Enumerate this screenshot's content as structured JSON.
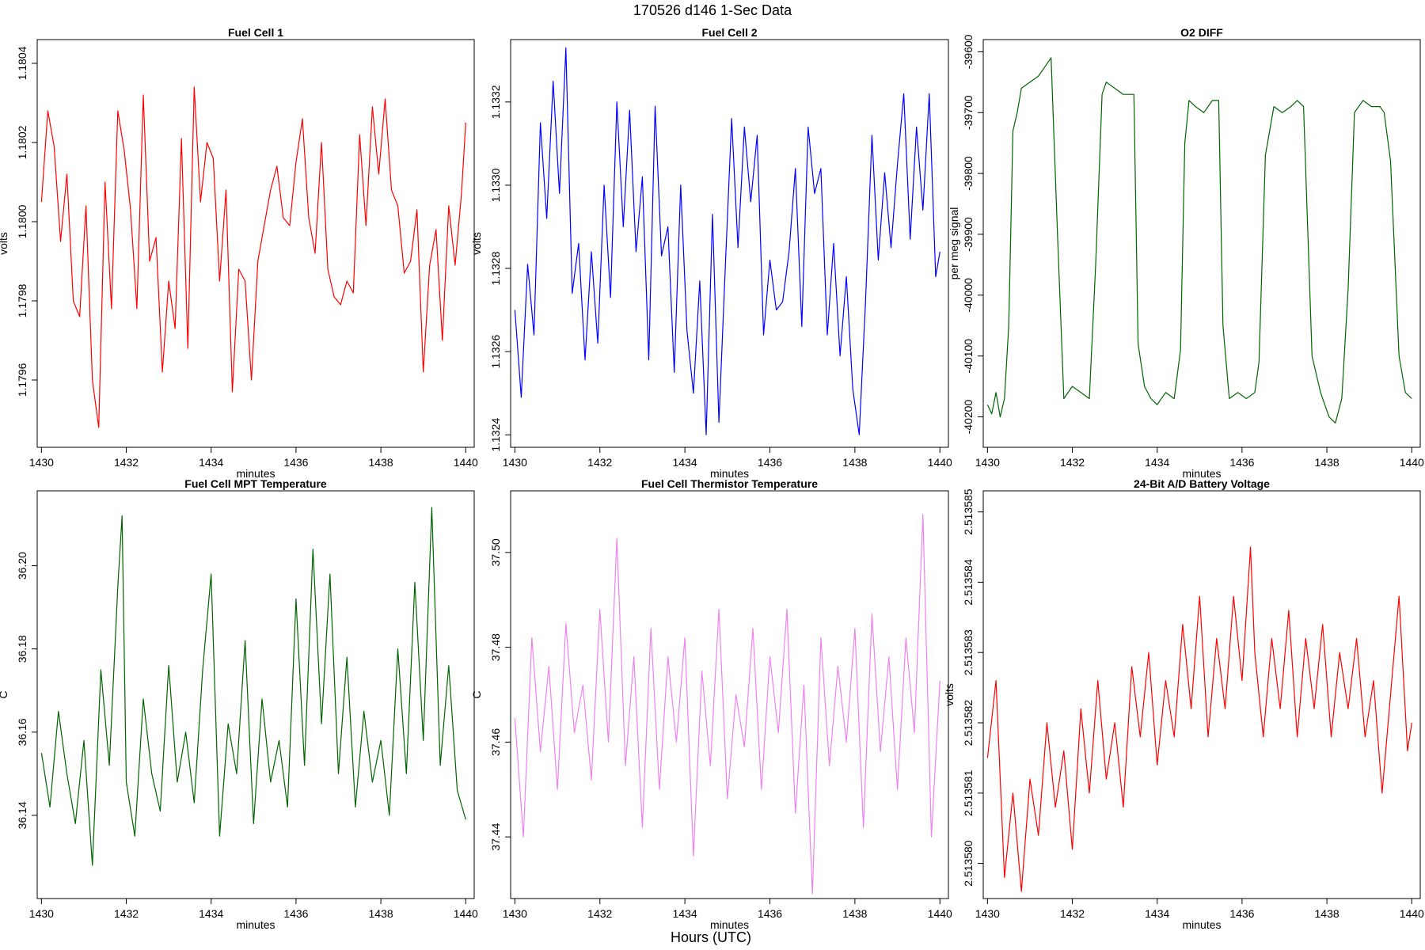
{
  "figure": {
    "title": "170526   d146   1-Sec Data",
    "footer": "Hours (UTC)"
  },
  "chart_data": [
    {
      "type": "line",
      "title": "Fuel Cell 1",
      "xlabel": "minutes",
      "ylabel": "volts",
      "color": "#ff0000",
      "xlim": [
        1429.9,
        1440.2
      ],
      "ylim": [
        1.17943,
        1.18046
      ],
      "xticks": [
        "1430",
        "1432",
        "1434",
        "1436",
        "1438",
        "1440"
      ],
      "yticks": [
        "1.1796",
        "1.1798",
        "1.1800",
        "1.1802",
        "1.1804"
      ],
      "series": [
        {
          "x": [
            1430.0,
            1430.15,
            1430.3,
            1430.45,
            1430.6,
            1430.75,
            1430.9,
            1431.05,
            1431.2,
            1431.35,
            1431.5,
            1431.65,
            1431.8,
            1431.95,
            1432.1,
            1432.25,
            1432.4,
            1432.55,
            1432.7,
            1432.85,
            1433.0,
            1433.15,
            1433.3,
            1433.45,
            1433.6,
            1433.75,
            1433.9,
            1434.05,
            1434.2,
            1434.35,
            1434.5,
            1434.65,
            1434.8,
            1434.95,
            1435.1,
            1435.25,
            1435.4,
            1435.55,
            1435.7,
            1435.85,
            1436.0,
            1436.15,
            1436.3,
            1436.45,
            1436.6,
            1436.75,
            1436.9,
            1437.05,
            1437.2,
            1437.35,
            1437.5,
            1437.65,
            1437.8,
            1437.95,
            1438.1,
            1438.25,
            1438.4,
            1438.55,
            1438.7,
            1438.85,
            1439.0,
            1439.15,
            1439.3,
            1439.45,
            1439.6,
            1439.75,
            1439.9,
            1440.0
          ],
          "y": [
            1.18005,
            1.18028,
            1.18019,
            1.17995,
            1.18012,
            1.1798,
            1.17976,
            1.18004,
            1.1796,
            1.17948,
            1.1801,
            1.17978,
            1.18028,
            1.18018,
            1.18003,
            1.17978,
            1.18032,
            1.1799,
            1.17996,
            1.17962,
            1.17985,
            1.17973,
            1.18021,
            1.17968,
            1.18034,
            1.18005,
            1.1802,
            1.18016,
            1.17985,
            1.18008,
            1.17957,
            1.17988,
            1.17985,
            1.1796,
            1.1799,
            1.17999,
            1.18008,
            1.18014,
            1.18001,
            1.17999,
            1.18015,
            1.18026,
            1.18001,
            1.17992,
            1.1802,
            1.17988,
            1.17981,
            1.17979,
            1.17985,
            1.17982,
            1.18022,
            1.17999,
            1.18029,
            1.18012,
            1.18031,
            1.18008,
            1.18004,
            1.17987,
            1.1799,
            1.18003,
            1.17962,
            1.17989,
            1.17998,
            1.1797,
            1.18004,
            1.17989,
            1.18007,
            1.18025
          ]
        }
      ]
    },
    {
      "type": "line",
      "title": "Fuel Cell 2",
      "xlabel": "minutes",
      "ylabel": "volts",
      "color": "#0000ff",
      "xlim": [
        1429.9,
        1440.2
      ],
      "ylim": [
        1.13237,
        1.13335
      ],
      "xticks": [
        "1430",
        "1432",
        "1434",
        "1436",
        "1438",
        "1440"
      ],
      "yticks": [
        "1.1324",
        "1.1326",
        "1.1328",
        "1.1330",
        "1.1332"
      ],
      "series": [
        {
          "x": [
            1430.0,
            1430.15,
            1430.3,
            1430.45,
            1430.6,
            1430.75,
            1430.9,
            1431.05,
            1431.2,
            1431.35,
            1431.5,
            1431.65,
            1431.8,
            1431.95,
            1432.1,
            1432.25,
            1432.4,
            1432.55,
            1432.7,
            1432.85,
            1433.0,
            1433.15,
            1433.3,
            1433.45,
            1433.6,
            1433.75,
            1433.9,
            1434.05,
            1434.2,
            1434.35,
            1434.5,
            1434.65,
            1434.8,
            1434.95,
            1435.1,
            1435.25,
            1435.4,
            1435.55,
            1435.7,
            1435.85,
            1436.0,
            1436.15,
            1436.3,
            1436.45,
            1436.6,
            1436.75,
            1436.9,
            1437.05,
            1437.2,
            1437.35,
            1437.5,
            1437.65,
            1437.8,
            1437.95,
            1438.1,
            1438.25,
            1438.4,
            1438.55,
            1438.7,
            1438.85,
            1439.0,
            1439.15,
            1439.3,
            1439.45,
            1439.6,
            1439.75,
            1439.9,
            1440.0
          ],
          "y": [
            1.1327,
            1.13249,
            1.13281,
            1.13264,
            1.13315,
            1.13292,
            1.13325,
            1.13298,
            1.13333,
            1.13274,
            1.13286,
            1.13258,
            1.13284,
            1.13262,
            1.133,
            1.13273,
            1.1332,
            1.1329,
            1.13318,
            1.13284,
            1.13302,
            1.13258,
            1.13319,
            1.13283,
            1.1329,
            1.13255,
            1.133,
            1.13265,
            1.1325,
            1.13277,
            1.1324,
            1.13293,
            1.13243,
            1.1328,
            1.13316,
            1.13285,
            1.13314,
            1.13296,
            1.13312,
            1.13264,
            1.13282,
            1.1327,
            1.13272,
            1.13284,
            1.13304,
            1.13266,
            1.13314,
            1.13298,
            1.13304,
            1.13264,
            1.13286,
            1.13259,
            1.13278,
            1.13251,
            1.1324,
            1.13272,
            1.13312,
            1.13282,
            1.13303,
            1.13285,
            1.13305,
            1.13322,
            1.13287,
            1.13314,
            1.13294,
            1.13322,
            1.13278,
            1.13284
          ]
        }
      ]
    },
    {
      "type": "line",
      "title": "O2 DIFF",
      "xlabel": "minutes",
      "ylabel": "per meg signal",
      "color": "#006400",
      "xlim": [
        1429.9,
        1440.2
      ],
      "ylim": [
        -40250,
        -39580
      ],
      "xticks": [
        "1430",
        "1432",
        "1434",
        "1436",
        "1438",
        "1440"
      ],
      "yticks": [
        "-39600",
        "-39700",
        "-39800",
        "-39900",
        "-40000",
        "-40100",
        "-40200"
      ],
      "series": [
        {
          "x": [
            1430.0,
            1430.1,
            1430.2,
            1430.3,
            1430.4,
            1430.5,
            1430.6,
            1430.7,
            1430.8,
            1431.0,
            1431.2,
            1431.4,
            1431.5,
            1431.65,
            1431.8,
            1432.0,
            1432.2,
            1432.4,
            1432.55,
            1432.7,
            1432.8,
            1433.0,
            1433.2,
            1433.45,
            1433.55,
            1433.7,
            1433.85,
            1434.0,
            1434.2,
            1434.4,
            1434.55,
            1434.65,
            1434.75,
            1434.9,
            1435.1,
            1435.3,
            1435.45,
            1435.55,
            1435.7,
            1435.9,
            1436.1,
            1436.3,
            1436.4,
            1436.55,
            1436.75,
            1436.95,
            1437.15,
            1437.3,
            1437.45,
            1437.65,
            1437.85,
            1438.05,
            1438.2,
            1438.35,
            1438.5,
            1438.65,
            1438.85,
            1439.05,
            1439.25,
            1439.35,
            1439.5,
            1439.7,
            1439.85,
            1440.0
          ],
          "y": [
            -40180,
            -40195,
            -40160,
            -40200,
            -40170,
            -40050,
            -39730,
            -39700,
            -39660,
            -39650,
            -39640,
            -39620,
            -39610,
            -39900,
            -40170,
            -40150,
            -40160,
            -40170,
            -39950,
            -39670,
            -39650,
            -39660,
            -39670,
            -39670,
            -40080,
            -40150,
            -40170,
            -40180,
            -40160,
            -40170,
            -40090,
            -39750,
            -39680,
            -39690,
            -39700,
            -39680,
            -39680,
            -40050,
            -40170,
            -40160,
            -40170,
            -40160,
            -40110,
            -39770,
            -39690,
            -39700,
            -39690,
            -39680,
            -39690,
            -40100,
            -40160,
            -40200,
            -40210,
            -40170,
            -39990,
            -39700,
            -39680,
            -39690,
            -39690,
            -39700,
            -39780,
            -40100,
            -40160,
            -40170
          ]
        }
      ]
    },
    {
      "type": "line",
      "title": "Fuel Cell MPT Temperature",
      "xlabel": "minutes",
      "ylabel": "C",
      "color": "#006400",
      "xlim": [
        1429.9,
        1440.2
      ],
      "ylim": [
        36.12,
        36.218
      ],
      "xticks": [
        "1430",
        "1432",
        "1434",
        "1436",
        "1438",
        "1440"
      ],
      "yticks": [
        "36.14",
        "36.16",
        "36.18",
        "36.20"
      ],
      "series": [
        {
          "x": [
            1430.0,
            1430.2,
            1430.4,
            1430.6,
            1430.8,
            1431.0,
            1431.2,
            1431.4,
            1431.6,
            1431.8,
            1431.9,
            1432.0,
            1432.2,
            1432.4,
            1432.6,
            1432.8,
            1433.0,
            1433.2,
            1433.4,
            1433.6,
            1433.8,
            1434.0,
            1434.2,
            1434.4,
            1434.6,
            1434.8,
            1435.0,
            1435.2,
            1435.4,
            1435.6,
            1435.8,
            1436.0,
            1436.2,
            1436.4,
            1436.6,
            1436.8,
            1437.0,
            1437.2,
            1437.4,
            1437.6,
            1437.8,
            1438.0,
            1438.2,
            1438.4,
            1438.6,
            1438.8,
            1439.0,
            1439.2,
            1439.4,
            1439.6,
            1439.8,
            1440.0
          ],
          "y": [
            36.155,
            36.142,
            36.165,
            36.15,
            36.138,
            36.158,
            36.128,
            36.175,
            36.152,
            36.195,
            36.212,
            36.148,
            36.135,
            36.168,
            36.15,
            36.141,
            36.176,
            36.148,
            36.16,
            36.143,
            36.175,
            36.198,
            36.135,
            36.162,
            36.15,
            36.182,
            36.138,
            36.168,
            36.148,
            36.158,
            36.142,
            36.192,
            36.152,
            36.204,
            36.162,
            36.198,
            36.15,
            36.178,
            36.142,
            36.165,
            36.148,
            36.158,
            36.14,
            36.18,
            36.15,
            36.196,
            36.158,
            36.214,
            36.152,
            36.176,
            36.146,
            36.139
          ]
        }
      ]
    },
    {
      "type": "line",
      "title": "Fuel Cell Thermistor Temperature",
      "xlabel": "minutes",
      "ylabel": "C",
      "color": "#ee82ee",
      "xlim": [
        1429.9,
        1440.2
      ],
      "ylim": [
        37.427,
        37.513
      ],
      "xticks": [
        "1430",
        "1432",
        "1434",
        "1436",
        "1438",
        "1440"
      ],
      "yticks": [
        "37.44",
        "37.46",
        "37.48",
        "37.50"
      ],
      "series": [
        {
          "x": [
            1430.0,
            1430.2,
            1430.4,
            1430.6,
            1430.8,
            1431.0,
            1431.2,
            1431.4,
            1431.6,
            1431.8,
            1432.0,
            1432.2,
            1432.4,
            1432.6,
            1432.8,
            1433.0,
            1433.2,
            1433.4,
            1433.6,
            1433.8,
            1434.0,
            1434.2,
            1434.4,
            1434.6,
            1434.8,
            1435.0,
            1435.2,
            1435.4,
            1435.6,
            1435.8,
            1436.0,
            1436.2,
            1436.4,
            1436.6,
            1436.8,
            1437.0,
            1437.2,
            1437.4,
            1437.6,
            1437.8,
            1438.0,
            1438.2,
            1438.4,
            1438.6,
            1438.8,
            1439.0,
            1439.2,
            1439.4,
            1439.6,
            1439.8,
            1440.0
          ],
          "y": [
            37.465,
            37.44,
            37.482,
            37.458,
            37.476,
            37.45,
            37.485,
            37.462,
            37.472,
            37.452,
            37.488,
            37.46,
            37.503,
            37.455,
            37.478,
            37.442,
            37.484,
            37.45,
            37.478,
            37.46,
            37.482,
            37.436,
            37.475,
            37.455,
            37.488,
            37.448,
            37.47,
            37.459,
            37.484,
            37.45,
            37.478,
            37.462,
            37.488,
            37.445,
            37.472,
            37.428,
            37.482,
            37.455,
            37.476,
            37.46,
            37.484,
            37.442,
            37.487,
            37.458,
            37.478,
            37.45,
            37.482,
            37.462,
            37.508,
            37.44,
            37.473
          ]
        }
      ]
    },
    {
      "type": "line",
      "title": "24-Bit A/D Battery Voltage",
      "xlabel": "minutes",
      "ylabel": "volts",
      "color": "#ff0000",
      "xlim": [
        1429.9,
        1440.2
      ],
      "ylim": [
        2.5135795,
        2.5135853
      ],
      "xticks": [
        "1430",
        "1432",
        "1434",
        "1436",
        "1438",
        "1440"
      ],
      "yticks": [
        "2.513580",
        "2.513581",
        "2.513582",
        "2.513583",
        "2.513584",
        "2.513585"
      ],
      "series": [
        {
          "x": [
            1430.0,
            1430.2,
            1430.4,
            1430.6,
            1430.8,
            1431.0,
            1431.2,
            1431.4,
            1431.6,
            1431.8,
            1432.0,
            1432.2,
            1432.4,
            1432.6,
            1432.8,
            1433.0,
            1433.2,
            1433.4,
            1433.6,
            1433.8,
            1434.0,
            1434.2,
            1434.4,
            1434.6,
            1434.8,
            1435.0,
            1435.2,
            1435.4,
            1435.6,
            1435.8,
            1436.0,
            1436.2,
            1436.3,
            1436.5,
            1436.7,
            1436.9,
            1437.1,
            1437.3,
            1437.5,
            1437.7,
            1437.9,
            1438.1,
            1438.3,
            1438.5,
            1438.7,
            1438.9,
            1439.1,
            1439.3,
            1439.5,
            1439.7,
            1439.9,
            1440.0
          ],
          "y": [
            2.5135815,
            2.5135826,
            2.5135798,
            2.513581,
            2.5135796,
            2.5135812,
            2.5135804,
            2.513582,
            2.5135808,
            2.5135816,
            2.5135802,
            2.5135822,
            2.513581,
            2.5135826,
            2.5135812,
            2.513582,
            2.5135808,
            2.5135828,
            2.5135818,
            2.513583,
            2.5135814,
            2.5135826,
            2.5135818,
            2.5135834,
            2.5135822,
            2.5135838,
            2.5135818,
            2.5135832,
            2.5135822,
            2.5135838,
            2.5135826,
            2.5135845,
            2.513583,
            2.5135818,
            2.5135832,
            2.5135822,
            2.5135836,
            2.5135818,
            2.5135832,
            2.5135822,
            2.5135834,
            2.5135818,
            2.513583,
            2.5135822,
            2.5135832,
            2.5135818,
            2.5135826,
            2.513581,
            2.5135824,
            2.5135838,
            2.5135816,
            2.513582
          ]
        }
      ]
    }
  ]
}
